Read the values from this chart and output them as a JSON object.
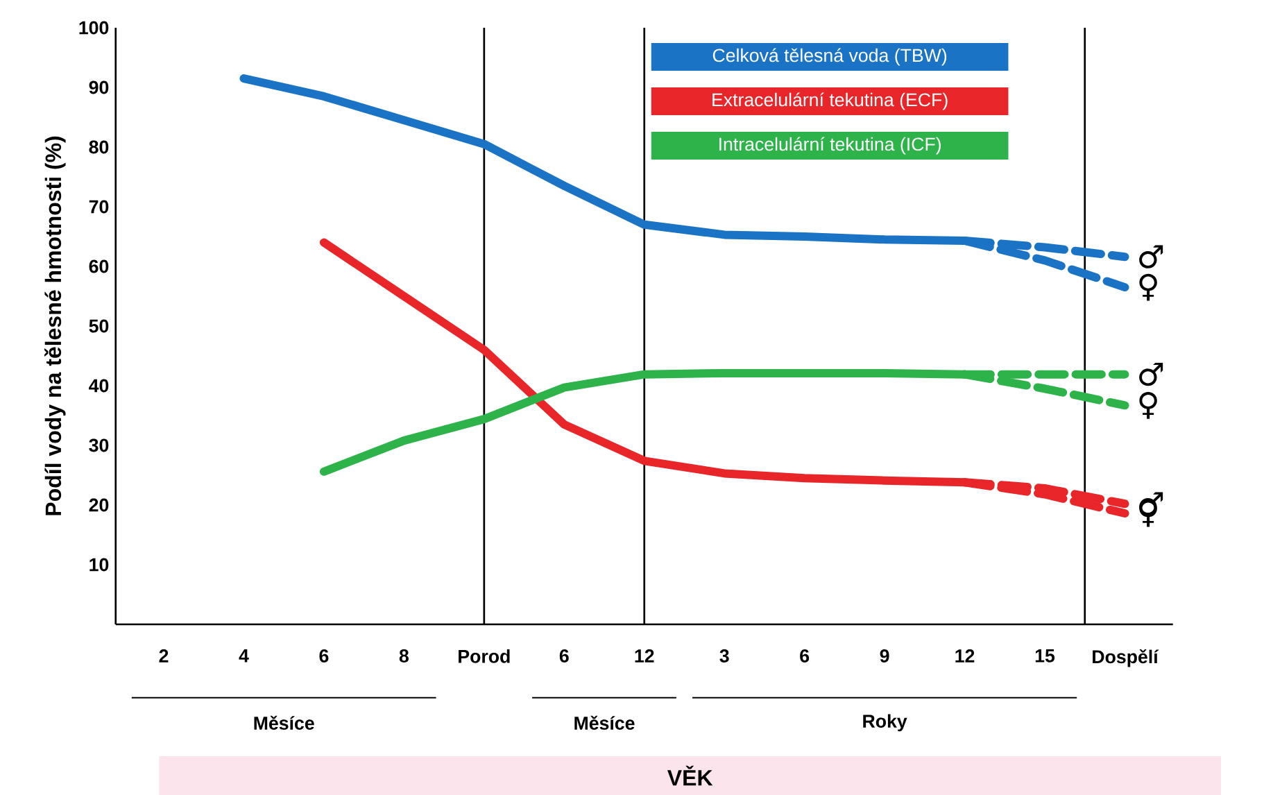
{
  "chart_data": {
    "type": "line",
    "ylabel": "Podíl vody na tělesné hmotnosti (%)",
    "xlabel": "VĚK",
    "categories": [
      "2",
      "4",
      "6",
      "8",
      "Porod",
      "6",
      "12",
      "3",
      "6",
      "9",
      "12",
      "15",
      "Dospělí"
    ],
    "ylim": [
      0,
      100
    ],
    "yticks": [
      10,
      20,
      30,
      40,
      50,
      60,
      70,
      80,
      90,
      100
    ],
    "legend": "top",
    "series": [
      {
        "name": "Celková tělesná voda (TBW)",
        "color": "#1a73c4",
        "line_style": "solid",
        "values": [
          null,
          91.5,
          88.5,
          84.5,
          80.5,
          73.5,
          67,
          65.3,
          65,
          64.5,
          64.3,
          null,
          null
        ]
      },
      {
        "color": "#1a73c4",
        "line_style": "dashed",
        "values": [
          null,
          null,
          null,
          null,
          null,
          null,
          null,
          null,
          null,
          null,
          64.3,
          63.2,
          61.6
        ]
      },
      {
        "color": "#1a73c4",
        "line_style": "dashed",
        "values": [
          null,
          null,
          null,
          null,
          null,
          null,
          null,
          null,
          null,
          null,
          64.3,
          61,
          56.5
        ]
      },
      {
        "name": "Extracelulární tekutina (ECF)",
        "color": "#e8262a",
        "line_style": "solid",
        "values": [
          null,
          null,
          64,
          55,
          46,
          33.5,
          27.4,
          25.3,
          24.5,
          24.1,
          23.8,
          null,
          null
        ]
      },
      {
        "color": "#e8262a",
        "line_style": "dashed",
        "values": [
          null,
          null,
          null,
          null,
          null,
          null,
          null,
          null,
          null,
          null,
          23.8,
          22.8,
          20.2
        ]
      },
      {
        "color": "#e8262a",
        "line_style": "dashed",
        "values": [
          null,
          null,
          null,
          null,
          null,
          null,
          null,
          null,
          null,
          null,
          23.8,
          21.8,
          18.6
        ]
      },
      {
        "name": "Intracelulární tekutina (ICF)",
        "color": "#2db34a",
        "line_style": "solid",
        "values": [
          null,
          null,
          25.6,
          30.8,
          34.4,
          39.7,
          41.9,
          42.1,
          42.1,
          42.1,
          41.9,
          null,
          null
        ]
      },
      {
        "color": "#2db34a",
        "line_style": "dashed",
        "values": [
          null,
          null,
          null,
          null,
          null,
          null,
          null,
          null,
          null,
          null,
          41.9,
          41.9,
          41.9
        ]
      },
      {
        "color": "#2db34a",
        "line_style": "dashed",
        "values": [
          null,
          null,
          null,
          null,
          null,
          null,
          null,
          null,
          null,
          null,
          41.9,
          39.5,
          36.7
        ]
      }
    ],
    "ref_lines": [
      {
        "axis": "x",
        "value": "Porod",
        "color": "#000000"
      },
      {
        "axis": "x",
        "value": "12",
        "color": "#000000"
      }
    ],
    "annotations": [
      {
        "text": "♂",
        "x": "Dospělí",
        "y": 61.6
      },
      {
        "text": "♀",
        "x": "Dospělí",
        "y": 56.5
      },
      {
        "text": "♂",
        "x": "Dospělí",
        "y": 41.9
      },
      {
        "text": "♀",
        "x": "Dospělí",
        "y": 36.7
      },
      {
        "text": "♂",
        "x": "Dospělí",
        "y": 20.2
      },
      {
        "text": "♀",
        "x": "Dospělí",
        "y": 18.6
      },
      "Měsíce",
      "Měsíce",
      "Roky"
    ]
  }
}
